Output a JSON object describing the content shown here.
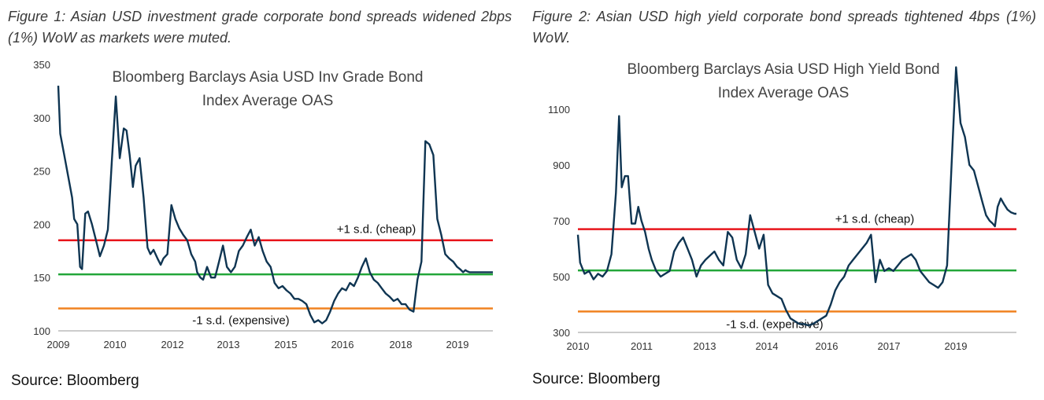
{
  "figures": [
    {
      "caption": "Figure 1: Asian USD investment grade corporate bond spreads widened 2bps (1%) WoW as markets were muted.",
      "source": "Source: Bloomberg"
    },
    {
      "caption": "Figure 2: Asian USD high yield corporate bond spreads tightened 4bps (1%) WoW.",
      "source": "Source: Bloomberg"
    }
  ],
  "colors": {
    "series": "#0f3552",
    "plus_sd": "#e8141b",
    "mean": "#23a639",
    "minus_sd": "#f08220"
  },
  "chart_data": [
    {
      "type": "line",
      "title_lines": [
        "Bloomberg Barclays Asia USD Inv Grade Bond",
        "Index Average OAS"
      ],
      "xlabel": "",
      "ylabel": "",
      "x_tick_labels": [
        "2009",
        "2010",
        "2012",
        "2013",
        "2015",
        "2016",
        "2018",
        "2019"
      ],
      "y_ticks": [
        100,
        150,
        200,
        250,
        300,
        350
      ],
      "ylim": [
        100,
        350
      ],
      "xlim": [
        2009.0,
        2019.95
      ],
      "reference_lines": [
        {
          "label": "+1 s.d. (cheap)",
          "value": 185,
          "color": "#e8141b"
        },
        {
          "label": "",
          "value": 153,
          "color": "#23a639"
        },
        {
          "label": "-1 s.d. (expensive)",
          "value": 121,
          "color": "#f08220"
        }
      ],
      "series": [
        {
          "x": [
            2009.0,
            2009.05,
            2009.15,
            2009.25,
            2009.35,
            2009.4,
            2009.48,
            2009.55,
            2009.6,
            2009.68,
            2009.75,
            2009.85,
            2009.95,
            2010.05,
            2010.15,
            2010.25,
            2010.35,
            2010.45,
            2010.55,
            2010.65,
            2010.72,
            2010.8,
            2010.88,
            2010.95,
            2011.05,
            2011.15,
            2011.25,
            2011.32,
            2011.4,
            2011.5,
            2011.58,
            2011.65,
            2011.75,
            2011.85,
            2011.95,
            2012.05,
            2012.15,
            2012.25,
            2012.35,
            2012.45,
            2012.5,
            2012.58,
            2012.65,
            2012.75,
            2012.85,
            2012.95,
            2013.05,
            2013.15,
            2013.25,
            2013.35,
            2013.45,
            2013.55,
            2013.65,
            2013.75,
            2013.85,
            2013.95,
            2014.05,
            2014.15,
            2014.25,
            2014.35,
            2014.45,
            2014.55,
            2014.65,
            2014.75,
            2014.85,
            2014.95,
            2015.05,
            2015.15,
            2015.25,
            2015.35,
            2015.45,
            2015.55,
            2015.65,
            2015.75,
            2015.85,
            2015.95,
            2016.05,
            2016.15,
            2016.25,
            2016.35,
            2016.45,
            2016.55,
            2016.65,
            2016.75,
            2016.85,
            2016.95,
            2017.05,
            2017.15,
            2017.25,
            2017.35,
            2017.45,
            2017.55,
            2017.65,
            2017.75,
            2017.85,
            2017.95,
            2018.05,
            2018.15,
            2018.25,
            2018.35,
            2018.45,
            2018.55,
            2018.65,
            2018.75,
            2018.85,
            2018.95,
            2019.05,
            2019.12,
            2019.2,
            2019.26,
            2019.3,
            2019.36,
            2019.42,
            2019.5,
            2019.6,
            2019.7,
            2019.8,
            2019.88,
            2019.95
          ],
          "y": [
            330,
            285,
            265,
            245,
            225,
            205,
            200,
            160,
            158,
            210,
            212,
            200,
            185,
            170,
            180,
            195,
            260,
            320,
            262,
            290,
            288,
            265,
            235,
            255,
            262,
            225,
            178,
            172,
            176,
            168,
            162,
            168,
            172,
            218,
            205,
            196,
            190,
            185,
            172,
            165,
            155,
            150,
            148,
            160,
            150,
            150,
            165,
            180,
            160,
            155,
            160,
            175,
            180,
            188,
            195,
            180,
            188,
            175,
            165,
            160,
            145,
            140,
            142,
            138,
            135,
            130,
            130,
            128,
            125,
            115,
            108,
            110,
            107,
            110,
            118,
            128,
            135,
            140,
            138,
            145,
            142,
            150,
            160,
            168,
            155,
            148,
            145,
            140,
            135,
            132,
            128,
            130,
            125,
            125,
            120,
            118,
            148,
            165,
            278,
            275,
            265,
            205,
            190,
            172,
            168,
            165,
            160,
            158,
            155,
            157,
            156,
            155,
            155,
            155,
            155,
            155,
            155,
            155,
            155
          ]
        }
      ]
    },
    {
      "type": "line",
      "title_lines": [
        "Bloomberg Barclays Asia USD High Yield Bond",
        "Index Average OAS"
      ],
      "xlabel": "",
      "ylabel": "",
      "x_tick_labels": [
        "2010",
        "2011",
        "2013",
        "2014",
        "2016",
        "2017",
        "2019"
      ],
      "y_ticks": [
        300,
        500,
        700,
        900,
        1100
      ],
      "ylim": [
        300,
        1260
      ],
      "xlim": [
        2010.0,
        2019.8
      ],
      "reference_lines": [
        {
          "label": "+1 s.d. (cheap)",
          "value": 670,
          "color": "#e8141b"
        },
        {
          "label": "",
          "value": 522,
          "color": "#23a639"
        },
        {
          "label": "-1 s.d. (expensive)",
          "value": 375,
          "color": "#f08220"
        }
      ],
      "series": [
        {
          "x": [
            2010.0,
            2010.05,
            2010.15,
            2010.25,
            2010.35,
            2010.45,
            2010.55,
            2010.65,
            2010.75,
            2010.85,
            2010.92,
            2010.98,
            2011.05,
            2011.12,
            2011.2,
            2011.28,
            2011.35,
            2011.42,
            2011.5,
            2011.58,
            2011.65,
            2011.75,
            2011.85,
            2011.95,
            2012.05,
            2012.15,
            2012.25,
            2012.35,
            2012.45,
            2012.55,
            2012.65,
            2012.75,
            2012.85,
            2012.95,
            2013.05,
            2013.15,
            2013.25,
            2013.35,
            2013.45,
            2013.55,
            2013.65,
            2013.75,
            2013.85,
            2013.95,
            2014.05,
            2014.15,
            2014.25,
            2014.35,
            2014.45,
            2014.55,
            2014.65,
            2014.75,
            2014.85,
            2014.95,
            2015.05,
            2015.15,
            2015.25,
            2015.35,
            2015.45,
            2015.55,
            2015.65,
            2015.75,
            2015.85,
            2015.95,
            2016.05,
            2016.15,
            2016.25,
            2016.35,
            2016.45,
            2016.55,
            2016.65,
            2016.75,
            2016.85,
            2016.95,
            2017.05,
            2017.15,
            2017.25,
            2017.35,
            2017.45,
            2017.55,
            2017.65,
            2017.75,
            2017.85,
            2017.95,
            2018.05,
            2018.15,
            2018.25,
            2018.35,
            2018.45,
            2018.55,
            2018.65,
            2018.75,
            2018.85,
            2018.95,
            2019.05,
            2019.12,
            2019.2,
            2019.27,
            2019.32,
            2019.38,
            2019.45,
            2019.52,
            2019.6,
            2019.68,
            2019.76,
            2019.8
          ],
          "y": [
            650,
            550,
            510,
            520,
            490,
            510,
            500,
            520,
            580,
            800,
            1075,
            820,
            860,
            860,
            690,
            690,
            750,
            700,
            660,
            600,
            560,
            520,
            500,
            510,
            520,
            590,
            620,
            640,
            600,
            560,
            500,
            540,
            560,
            575,
            590,
            560,
            540,
            660,
            640,
            560,
            530,
            580,
            720,
            660,
            600,
            650,
            470,
            440,
            430,
            420,
            380,
            350,
            340,
            330,
            330,
            325,
            330,
            340,
            350,
            360,
            400,
            450,
            480,
            500,
            540,
            560,
            580,
            600,
            620,
            650,
            480,
            560,
            520,
            530,
            520,
            540,
            560,
            570,
            580,
            560,
            520,
            500,
            480,
            470,
            460,
            480,
            540,
            900,
            1250,
            1050,
            1000,
            900,
            880,
            820,
            760,
            720,
            700,
            690,
            680,
            750,
            780,
            760,
            740,
            730,
            725,
            725
          ]
        }
      ]
    }
  ]
}
